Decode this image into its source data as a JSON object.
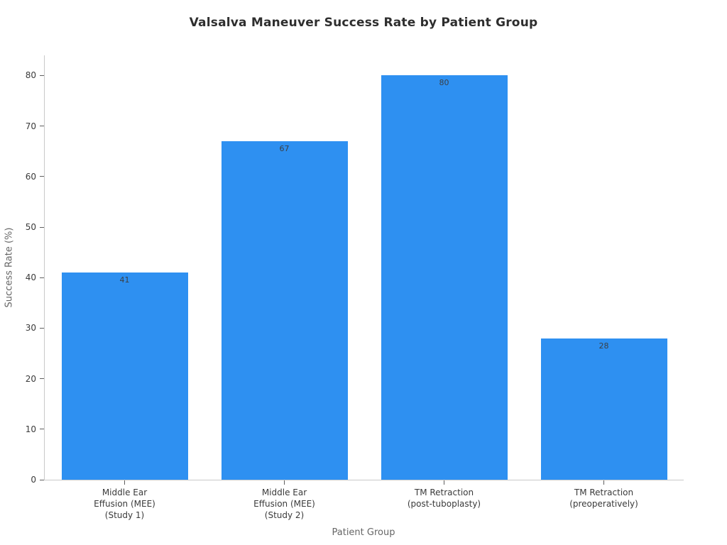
{
  "chart_data": {
    "type": "bar",
    "title": "Valsalva Maneuver Success Rate by Patient Group",
    "categories": [
      "Middle Ear\nEffusion (MEE)\n(Study 1)",
      "Middle Ear\nEffusion (MEE)\n(Study 2)",
      "TM Retraction\n(post-tuboplasty)",
      "TM Retraction\n(preoperatively)"
    ],
    "values": [
      41,
      67,
      80,
      28
    ],
    "bar_labels": [
      "41",
      "67",
      "80",
      "28"
    ],
    "xlabel": "Patient Group",
    "ylabel": "Success Rate (%)",
    "ylim": [
      0,
      84
    ],
    "yticks": [
      0,
      10,
      20,
      30,
      40,
      50,
      60,
      70,
      80
    ],
    "grid": false,
    "legend": "none",
    "spines": [
      "left",
      "bottom"
    ],
    "colors": {
      "bar": "#2e90f1",
      "bar_label_text": "#3b4046",
      "axis_spine": "#c9c9c9",
      "tick_mark": "#5f5f5f",
      "tick_label_text": "#3a3a3a",
      "axis_label_text": "#666666",
      "title_text": "#2e2e2e",
      "background": "#ffffff"
    }
  }
}
